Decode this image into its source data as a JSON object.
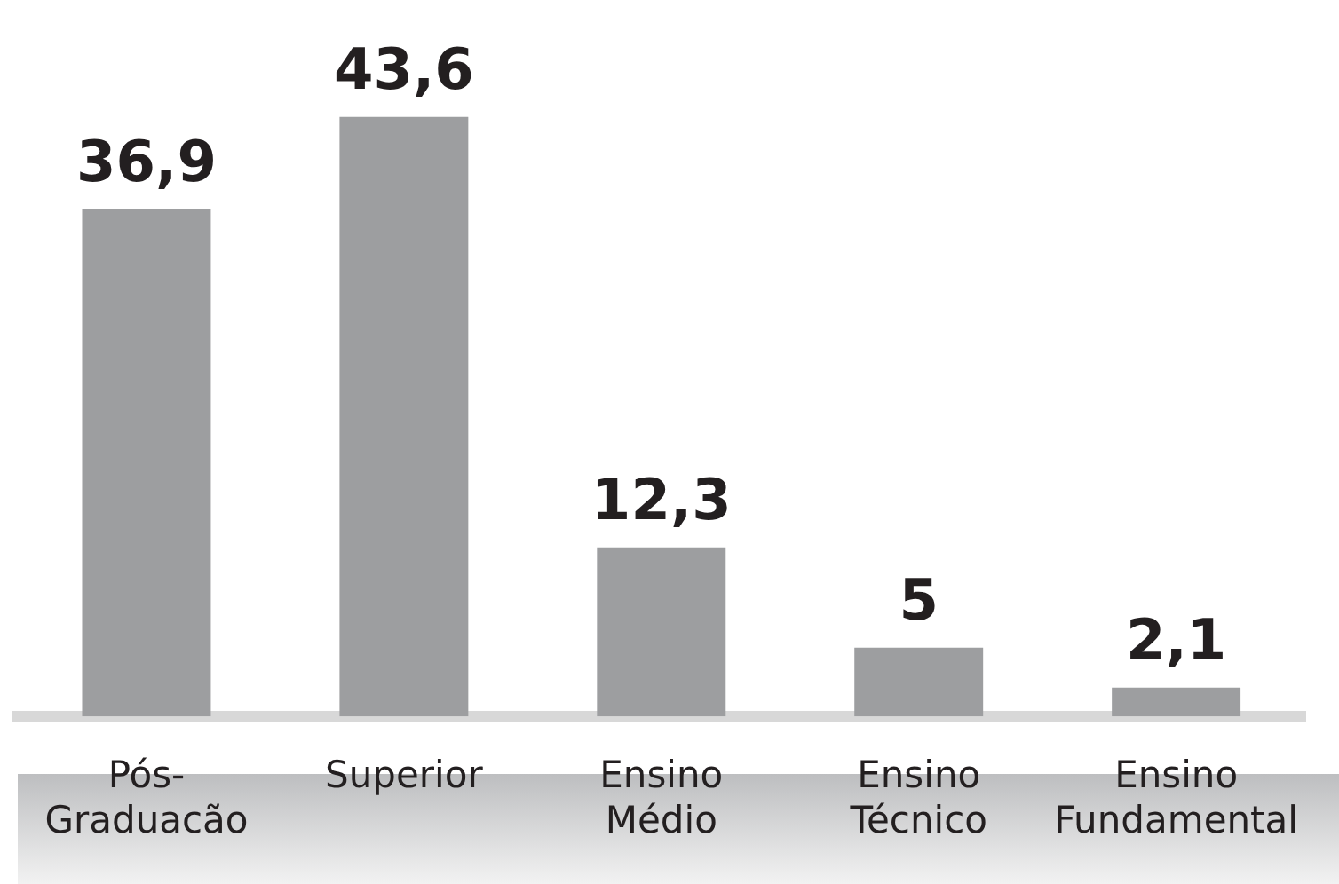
{
  "chart_data": {
    "type": "bar",
    "categories": [
      "Pós-Graduacão",
      "Superior",
      "Ensino Médio",
      "Ensino Técnico",
      "Ensino Fundamental"
    ],
    "values": [
      36.9,
      43.6,
      12.3,
      5,
      2.1
    ],
    "value_labels": [
      "36,9",
      "43,6",
      "12,3",
      "5",
      "2,1"
    ],
    "color": "#9d9ea0",
    "grid": false,
    "legend": false
  }
}
